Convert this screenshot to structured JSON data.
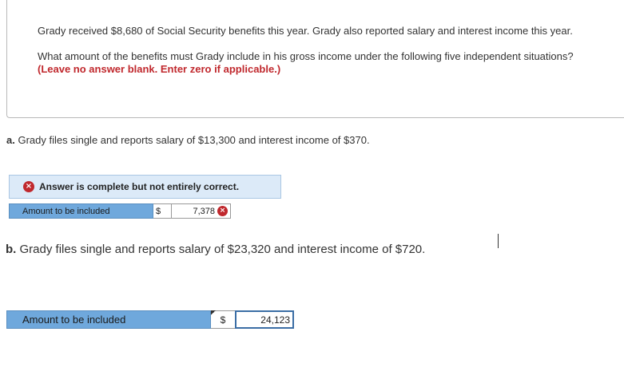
{
  "question": {
    "intro": "Grady received $8,680 of Social Security benefits this year. Grady also reported salary and interest income this year.",
    "prompt": "What amount of the benefits must Grady include in his gross income under the following five independent situations?",
    "instruction": "(Leave no answer blank. Enter zero if applicable.)"
  },
  "part_a": {
    "letter": "a.",
    "text": "Grady files single and reports salary of $13,300 and interest income of $370.",
    "feedback": "Answer is complete but not entirely correct.",
    "row_label": "Amount to be included",
    "currency": "$",
    "value": "7,378",
    "mark": "×"
  },
  "part_b": {
    "letter": "b.",
    "text": "Grady files single and reports salary of $23,320 and interest income of $720.",
    "row_label": "Amount to be included",
    "currency": "$",
    "value": "24,123"
  },
  "colors": {
    "accent_blue": "#6fa8dc",
    "feedback_bg": "#dceaf8",
    "error_red": "#c0282d"
  }
}
